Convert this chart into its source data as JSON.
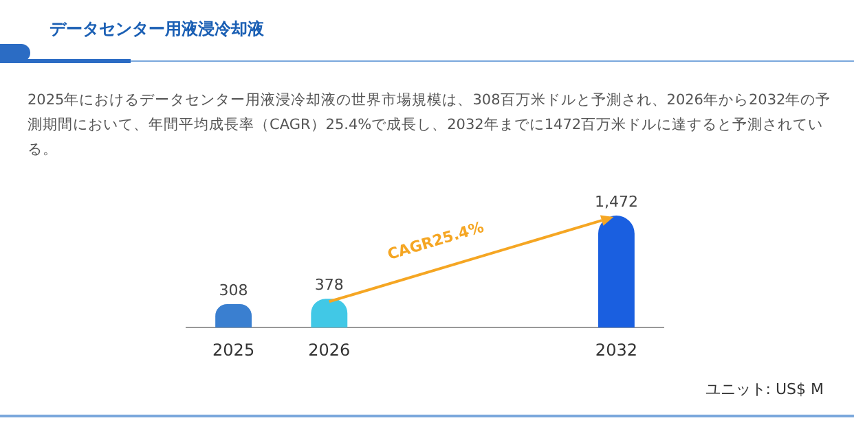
{
  "chart_data": {
    "type": "bar",
    "title": "データセンター用液浸冷却液",
    "subtitle": "2025年におけるデータセンター用液浸冷却液の世界市場規模は、308百万米ドルと予測され、2026年から2032年の予測期間において、年間平均成長率（CAGR）25.4%で成長し、2032年までに1472百万米ドルに達すると予測されている。",
    "categories": [
      "2025",
      "2026",
      null,
      null,
      "2032"
    ],
    "values": [
      308,
      378,
      null,
      null,
      1472
    ],
    "colors": [
      "#3a7fd0",
      "#41c8e6",
      null,
      null,
      "#1a5fe0"
    ],
    "value_labels": [
      "308",
      "378",
      null,
      null,
      "1,472"
    ],
    "annotations": [
      "CAGR25.4%",
      "ユニット: US$ M"
    ],
    "legend": false,
    "grid": false
  }
}
